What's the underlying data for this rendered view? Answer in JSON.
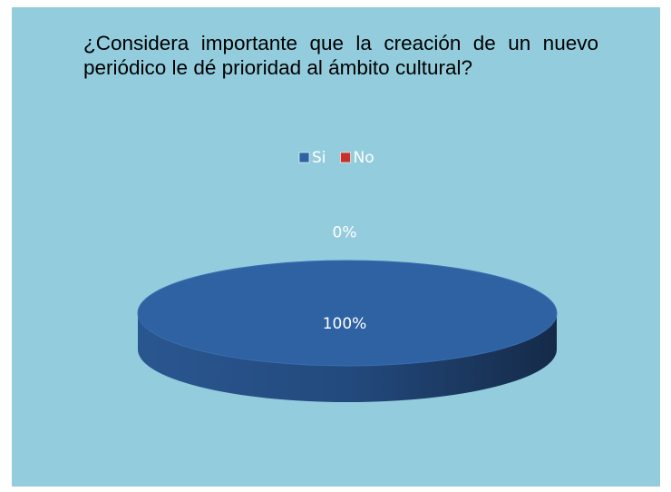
{
  "chart_data": {
    "type": "pie",
    "title": "¿Considera importante que la creación de un nuevo periódico le dé prioridad al ámbito cultural?",
    "categories": [
      "Si",
      "No"
    ],
    "values": [
      100,
      0
    ],
    "value_labels": [
      "100%",
      "0%"
    ],
    "colors": [
      "#2f62a3",
      "#c8302c"
    ],
    "legend": "top"
  }
}
